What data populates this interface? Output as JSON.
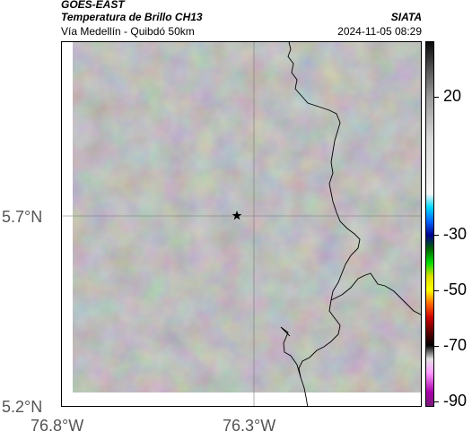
{
  "header": {
    "satellite": "GOES-EAST",
    "product": "Temperatura de Brillo CH13",
    "region": "Vía Medellín - Quibdó 50km",
    "organization": "SIATA",
    "timestamp": "2024-11-05 08:29"
  },
  "axes": {
    "y_ticks": [
      {
        "label": "5.7°N",
        "value": 5.7
      },
      {
        "label": "5.2°N",
        "value": 5.2
      }
    ],
    "x_ticks": [
      {
        "label": "76.8°W",
        "value": -76.8
      },
      {
        "label": "76.3°W",
        "value": -76.3
      }
    ]
  },
  "map": {
    "marker_icon": "star-marker-icon",
    "cloud_field_color": "#8c8c8c"
  },
  "colorbar": {
    "units_hint": "°C",
    "stops": [
      {
        "temp": 40,
        "color": "#0a0a0a"
      },
      {
        "temp": 30,
        "color": "#555555"
      },
      {
        "temp": 20,
        "color": "#9a9a9a"
      },
      {
        "temp": 5,
        "color": "#d8d8d8"
      },
      {
        "temp": -15,
        "color": "#f6f6f6"
      },
      {
        "temp": -20,
        "color": "#00d8ff"
      },
      {
        "temp": -25,
        "color": "#0066ff"
      },
      {
        "temp": -30,
        "color": "#000090"
      },
      {
        "temp": -35,
        "color": "#006400"
      },
      {
        "temp": -40,
        "color": "#00dd00"
      },
      {
        "temp": -45,
        "color": "#dddd00"
      },
      {
        "temp": -50,
        "color": "#ffff00"
      },
      {
        "temp": -55,
        "color": "#ff6600"
      },
      {
        "temp": -60,
        "color": "#cc0000"
      },
      {
        "temp": -65,
        "color": "#600000"
      },
      {
        "temp": -70,
        "color": "#000000"
      },
      {
        "temp": -75,
        "color": "#e0e0e0"
      },
      {
        "temp": -80,
        "color": "#ff99ff"
      },
      {
        "temp": -87,
        "color": "#aa00aa"
      },
      {
        "temp": -92,
        "color": "#7a1a7a"
      }
    ],
    "labels": [
      {
        "text": "20",
        "value": 20
      },
      {
        "text": "-30",
        "value": -30
      },
      {
        "text": "-50",
        "value": -50
      },
      {
        "text": "-70",
        "value": -70
      },
      {
        "text": "-90",
        "value": -90
      }
    ]
  }
}
